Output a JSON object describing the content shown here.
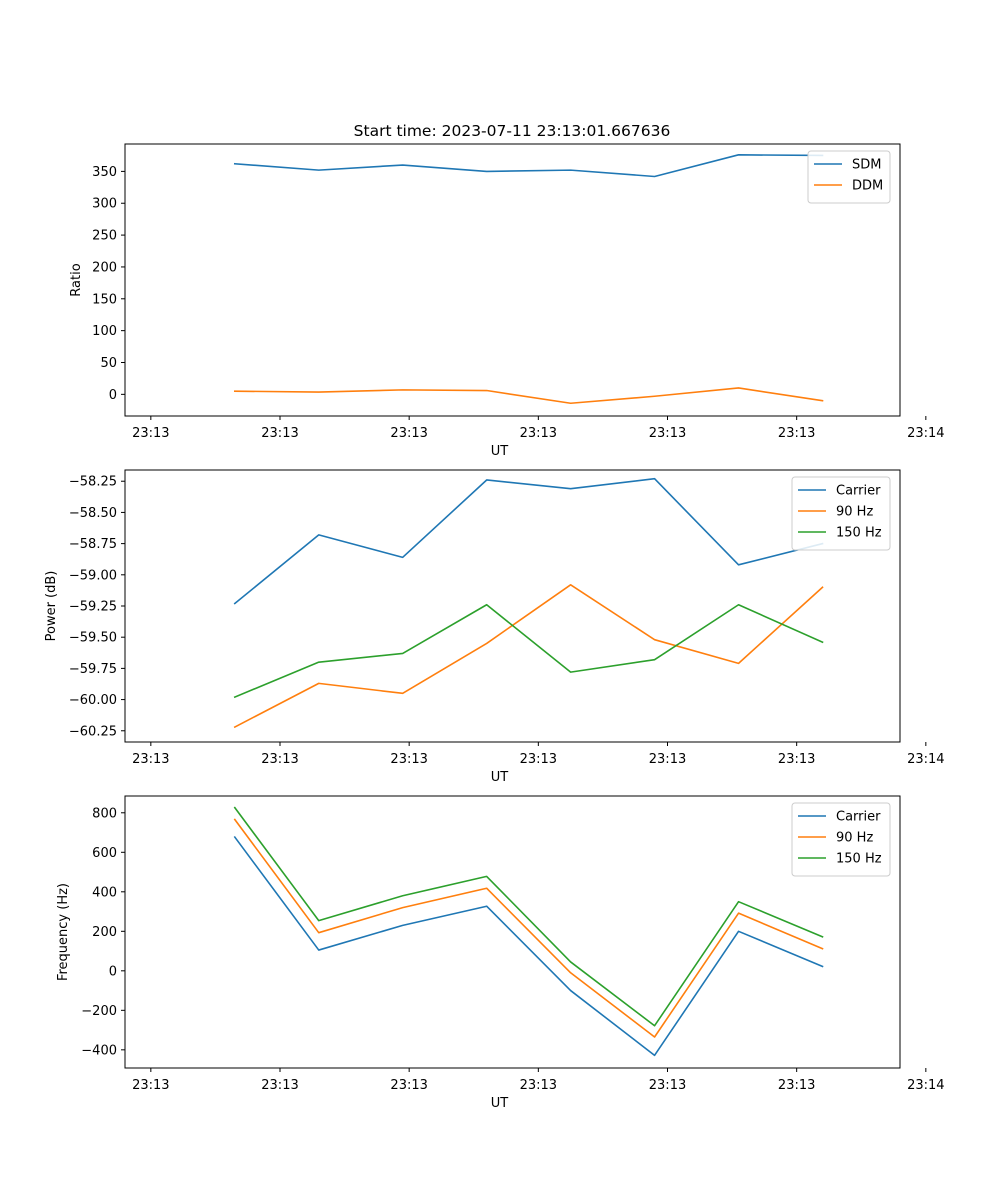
{
  "title": "Start time: 2023-07-11 23:13:01.667636",
  "chart_data": [
    {
      "type": "line",
      "title": "Start time: 2023-07-11 23:13:01.667636",
      "xlabel": "UT",
      "ylabel": "Ratio",
      "xlim": [
        0,
        60
      ],
      "ylim": [
        -34,
        393
      ],
      "xticks": [
        2,
        12,
        22,
        32,
        42,
        52,
        62
      ],
      "xtick_labels": [
        "23:13",
        "23:13",
        "23:13",
        "23:13",
        "23:13",
        "23:13",
        "23:14"
      ],
      "yticks": [
        0,
        50,
        100,
        150,
        200,
        250,
        300,
        350
      ],
      "ytick_labels": [
        "0",
        "50",
        "100",
        "150",
        "200",
        "250",
        "300",
        "350"
      ],
      "x": [
        8.5,
        15,
        21.5,
        28,
        34.5,
        41,
        47.5,
        54
      ],
      "legend_position": "top-right",
      "series": [
        {
          "name": "SDM",
          "color": "#1f77b4",
          "values": [
            362,
            352,
            360,
            350,
            352,
            342,
            376,
            375
          ]
        },
        {
          "name": "DDM",
          "color": "#ff7f0e",
          "values": [
            5,
            3.5,
            7,
            6,
            -14,
            -3,
            10,
            -10
          ]
        }
      ]
    },
    {
      "type": "line",
      "title": "",
      "xlabel": "UT",
      "ylabel": "Power (dB)",
      "xlim": [
        0,
        60
      ],
      "ylim": [
        -60.34,
        -58.16
      ],
      "xticks": [
        2,
        12,
        22,
        32,
        42,
        52,
        62
      ],
      "xtick_labels": [
        "23:13",
        "23:13",
        "23:13",
        "23:13",
        "23:13",
        "23:13",
        "23:14"
      ],
      "yticks": [
        -60.25,
        -60.0,
        -59.75,
        -59.5,
        -59.25,
        -59.0,
        -58.75,
        -58.5,
        -58.25
      ],
      "ytick_labels": [
        "−60.25",
        "−60.00",
        "−59.75",
        "−59.50",
        "−59.25",
        "−59.00",
        "−58.75",
        "−58.50",
        "−58.25"
      ],
      "x": [
        8.5,
        15,
        21.5,
        28,
        34.5,
        41,
        47.5,
        54
      ],
      "legend_position": "top-right",
      "series": [
        {
          "name": "Carrier",
          "color": "#1f77b4",
          "values": [
            -59.23,
            -58.68,
            -58.86,
            -58.24,
            -58.31,
            -58.23,
            -58.92,
            -58.75
          ]
        },
        {
          "name": "90 Hz",
          "color": "#ff7f0e",
          "values": [
            -60.22,
            -59.87,
            -59.95,
            -59.55,
            -59.08,
            -59.52,
            -59.71,
            -59.1
          ]
        },
        {
          "name": "150 Hz",
          "color": "#2ca02c",
          "values": [
            -59.98,
            -59.7,
            -59.63,
            -59.24,
            -59.78,
            -59.68,
            -59.24,
            -59.54
          ]
        }
      ]
    },
    {
      "type": "line",
      "title": "",
      "xlabel": "UT",
      "ylabel": "Frequency (Hz)",
      "xlim": [
        0,
        60
      ],
      "ylim": [
        -492,
        885
      ],
      "xticks": [
        2,
        12,
        22,
        32,
        42,
        52,
        62
      ],
      "xtick_labels": [
        "23:13",
        "23:13",
        "23:13",
        "23:13",
        "23:13",
        "23:13",
        "23:14"
      ],
      "yticks": [
        -400,
        -200,
        0,
        200,
        400,
        600,
        800
      ],
      "ytick_labels": [
        "−400",
        "−200",
        "0",
        "200",
        "400",
        "600",
        "800"
      ],
      "x": [
        8.5,
        15,
        21.5,
        28,
        34.5,
        41,
        47.5,
        54
      ],
      "legend_position": "top-right",
      "series": [
        {
          "name": "Carrier",
          "color": "#1f77b4",
          "values": [
            677,
            105,
            230,
            327,
            -100,
            -428,
            200,
            22
          ]
        },
        {
          "name": "90 Hz",
          "color": "#ff7f0e",
          "values": [
            766,
            193,
            320,
            418,
            -10,
            -335,
            292,
            112
          ]
        },
        {
          "name": "150 Hz",
          "color": "#2ca02c",
          "values": [
            826,
            254,
            380,
            478,
            45,
            -278,
            350,
            172
          ]
        }
      ]
    }
  ]
}
